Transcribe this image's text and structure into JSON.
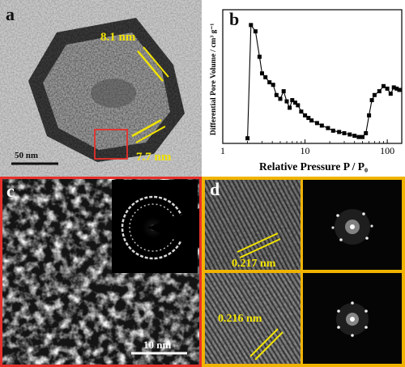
{
  "panels": {
    "a": {
      "label": "a",
      "annotations": [
        "8.1 nm",
        "7.7 nm"
      ],
      "scalebar": "50 nm"
    },
    "b": {
      "label": "b"
    },
    "c": {
      "label": "c",
      "scalebar": "10 nm"
    },
    "d": {
      "label": "d",
      "spacings": [
        "0.217 nm",
        "0.216 nm"
      ]
    }
  },
  "colors": {
    "frame_c": "#e8302b",
    "frame_d": "#f0b400",
    "roi_box": "#e8302b",
    "annotation": "#f2e300"
  },
  "chart_data": {
    "type": "line",
    "xlabel": "Relative Pressure P / P₀",
    "ylabel": "Differential Pore Volume / cm³ g⁻¹",
    "xscale": "log",
    "xlim": [
      1,
      150
    ],
    "ylim": [
      0,
      1.05
    ],
    "xticks": [
      "1",
      "10",
      "100"
    ],
    "grid": false,
    "series": [
      {
        "marker": "square",
        "x": [
          2.0,
          2.2,
          2.5,
          2.8,
          3.0,
          3.3,
          3.7,
          4.1,
          4.5,
          5.0,
          5.5,
          6.0,
          6.5,
          7.0,
          7.6,
          8.2,
          9.0,
          10,
          11,
          12,
          14,
          16,
          19,
          22,
          26,
          30,
          35,
          40,
          45,
          50,
          55,
          60,
          65,
          70,
          80,
          90,
          100,
          110,
          120,
          130,
          140
        ],
        "y": [
          0.04,
          0.93,
          0.88,
          0.68,
          0.55,
          0.52,
          0.48,
          0.46,
          0.38,
          0.35,
          0.41,
          0.33,
          0.28,
          0.34,
          0.32,
          0.3,
          0.25,
          0.22,
          0.2,
          0.18,
          0.16,
          0.14,
          0.12,
          0.1,
          0.09,
          0.08,
          0.07,
          0.06,
          0.05,
          0.05,
          0.08,
          0.22,
          0.34,
          0.38,
          0.41,
          0.45,
          0.43,
          0.39,
          0.44,
          0.43,
          0.42
        ]
      }
    ]
  }
}
